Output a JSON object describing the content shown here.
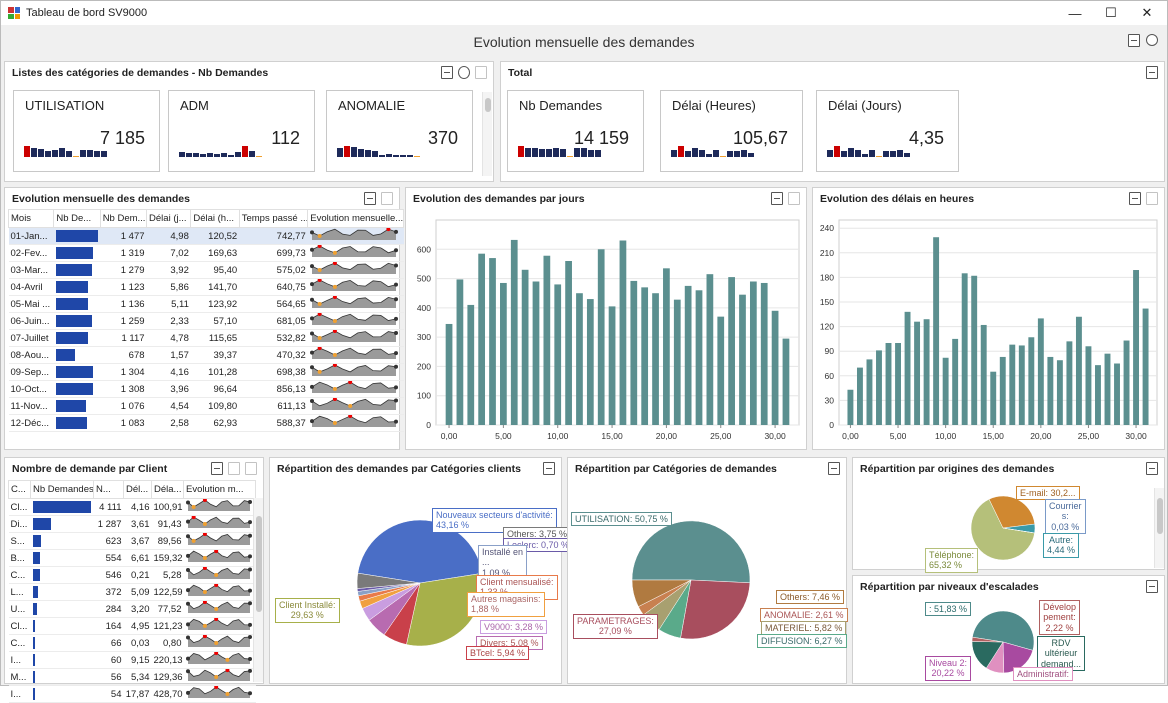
{
  "window": {
    "title": "Tableau de bord SV9000"
  },
  "dashboard": {
    "title": "Evolution mensuelle des demandes"
  },
  "categories_panel": {
    "title": "Listes des catégories de demandes - Nb Demandes",
    "cards": [
      {
        "label": "UTILISATION",
        "value": "7 185"
      },
      {
        "label": "ADM",
        "value": "112"
      },
      {
        "label": "ANOMALIE",
        "value": "370"
      }
    ]
  },
  "total_panel": {
    "title": "Total",
    "cards": [
      {
        "label": "Nb Demandes",
        "value": "14 159"
      },
      {
        "label": "Délai (Heures)",
        "value": "105,67"
      },
      {
        "label": "Délai (Jours)",
        "value": "4,35"
      }
    ]
  },
  "monthly_panel": {
    "title": "Evolution mensuelle des demandes",
    "columns": [
      "Mois",
      "Nb De...",
      "Nb Dem...",
      "Délai (j...",
      "Délai (h...",
      "Temps passé ...",
      "Evolution mensuelle..."
    ],
    "rows": [
      {
        "mois": "01-Jan...",
        "bar": 1477,
        "nb": "1 477",
        "dj": "4,98",
        "dh": "120,52",
        "tp": "742,77"
      },
      {
        "mois": "02-Fev...",
        "bar": 1319,
        "nb": "1 319",
        "dj": "7,02",
        "dh": "169,63",
        "tp": "699,73"
      },
      {
        "mois": "03-Mar...",
        "bar": 1279,
        "nb": "1 279",
        "dj": "3,92",
        "dh": "95,40",
        "tp": "575,02"
      },
      {
        "mois": "04-Avril",
        "bar": 1123,
        "nb": "1 123",
        "dj": "5,86",
        "dh": "141,70",
        "tp": "640,75"
      },
      {
        "mois": "05-Mai ...",
        "bar": 1136,
        "nb": "1 136",
        "dj": "5,11",
        "dh": "123,92",
        "tp": "564,65"
      },
      {
        "mois": "06-Juin...",
        "bar": 1259,
        "nb": "1 259",
        "dj": "2,33",
        "dh": "57,10",
        "tp": "681,05"
      },
      {
        "mois": "07-Juillet",
        "bar": 1117,
        "nb": "1 117",
        "dj": "4,78",
        "dh": "115,65",
        "tp": "532,82"
      },
      {
        "mois": "08-Aou...",
        "bar": 678,
        "nb": "678",
        "dj": "1,57",
        "dh": "39,37",
        "tp": "470,32"
      },
      {
        "mois": "09-Sep...",
        "bar": 1304,
        "nb": "1 304",
        "dj": "4,16",
        "dh": "101,28",
        "tp": "698,38"
      },
      {
        "mois": "10-Oct...",
        "bar": 1308,
        "nb": "1 308",
        "dj": "3,96",
        "dh": "96,64",
        "tp": "856,13"
      },
      {
        "mois": "11-Nov...",
        "bar": 1076,
        "nb": "1 076",
        "dj": "4,54",
        "dh": "109,80",
        "tp": "611,13"
      },
      {
        "mois": "12-Déc...",
        "bar": 1083,
        "nb": "1 083",
        "dj": "2,58",
        "dh": "62,93",
        "tp": "588,37"
      }
    ]
  },
  "clients_panel": {
    "title": "Nombre de demande par Client",
    "columns": [
      "C...",
      "Nb Demandes",
      "N...",
      "Dél...",
      "Déla...",
      "Evolution m..."
    ],
    "rows": [
      {
        "c": "Cl...",
        "bar": 4111,
        "n": "4 111",
        "d1": "4,16",
        "d2": "100,91"
      },
      {
        "c": "Di...",
        "bar": 1287,
        "n": "1 287",
        "d1": "3,61",
        "d2": "91,43"
      },
      {
        "c": "S...",
        "bar": 623,
        "n": "623",
        "d1": "3,67",
        "d2": "89,56"
      },
      {
        "c": "B...",
        "bar": 554,
        "n": "554",
        "d1": "6,61",
        "d2": "159,32"
      },
      {
        "c": "C...",
        "bar": 546,
        "n": "546",
        "d1": "0,21",
        "d2": "5,28"
      },
      {
        "c": "L...",
        "bar": 372,
        "n": "372",
        "d1": "5,09",
        "d2": "122,59"
      },
      {
        "c": "U...",
        "bar": 284,
        "n": "284",
        "d1": "3,20",
        "d2": "77,52"
      },
      {
        "c": "Cl...",
        "bar": 164,
        "n": "164",
        "d1": "4,95",
        "d2": "121,23"
      },
      {
        "c": "C...",
        "bar": 66,
        "n": "66",
        "d1": "0,03",
        "d2": "0,80"
      },
      {
        "c": "I...",
        "bar": 60,
        "n": "60",
        "d1": "9,15",
        "d2": "220,13"
      },
      {
        "c": "M...",
        "bar": 56,
        "n": "56",
        "d1": "5,34",
        "d2": "129,36"
      },
      {
        "c": "I...",
        "bar": 54,
        "n": "54",
        "d1": "17,87",
        "d2": "428,70"
      }
    ]
  },
  "days_panel": {
    "title": "Evolution des demandes par jours"
  },
  "delays_panel": {
    "title": "Evolution des délais en heures"
  },
  "pie_clients_panel": {
    "title": "Répartition des demandes par Catégories clients",
    "labels": {
      "nouveaux": [
        "Nouveaux secteurs d'activité:",
        "43,16 %"
      ],
      "others": "Others: 3,75 %",
      "leclerc": "Leclerc: 0,70 %",
      "installe_en": [
        "Installé en",
        "...",
        "1,09 %"
      ],
      "client_mens": [
        "Client mensualisé:",
        "1,33 %"
      ],
      "autres_mag": [
        "Autres magasins:",
        "1,88 %"
      ],
      "v9000": "V9000: 3,28 %",
      "divers": "Divers: 5,08 %",
      "btcel": "BTcel: 5,94 %",
      "client_inst": [
        "Client Installé:",
        "29,63 %"
      ]
    }
  },
  "pie_cat_panel": {
    "title": "Répartition par Catégories de demandes",
    "labels": {
      "utilisation": "UTILISATION: 50,75 %",
      "parametrages": [
        "PARAMETRAGES:",
        "27,09 %"
      ],
      "others": "Others: 7,46 %",
      "anomalie": "ANOMALIE: 2,61 %",
      "materiel": "MATERIEL: 5,82 %",
      "diffusion": "DIFFUSION: 6,27 %"
    }
  },
  "pie_orig_panel": {
    "title": "Répartition par origines des demandes",
    "labels": {
      "email": "E-mail: 30,2...",
      "courrier": [
        "Courrier",
        "s:",
        "0,03 %"
      ],
      "autre": [
        "Autre:",
        "4,44 %"
      ],
      "telephone": [
        "Téléphone:",
        "65,32 %"
      ]
    }
  },
  "pie_esc_panel": {
    "title": "Répartition par niveaux d'escalades",
    "labels": {
      "n1": ": 51,83 %",
      "dev": [
        "Dévelop",
        "pement:",
        "2,22 %"
      ],
      "rdv": [
        "RDV",
        "ultérieur",
        "demand..."
      ],
      "n2": [
        "Niveau 2:",
        "20,22 %"
      ],
      "admin": "Administratif:"
    }
  },
  "chart_data": [
    {
      "type": "bar",
      "title": "Evolution des demandes par jours",
      "x": [
        0,
        1,
        2,
        3,
        4,
        5,
        6,
        7,
        8,
        9,
        10,
        11,
        12,
        13,
        14,
        15,
        16,
        17,
        18,
        19,
        20,
        21,
        22,
        23,
        24,
        25,
        26,
        27,
        28,
        29,
        30,
        31
      ],
      "values": [
        345,
        497,
        410,
        585,
        570,
        485,
        632,
        530,
        490,
        578,
        480,
        560,
        450,
        430,
        600,
        405,
        630,
        492,
        470,
        450,
        535,
        428,
        475,
        460,
        515,
        370,
        505,
        445,
        490,
        485,
        390,
        295
      ],
      "xticks": [
        "0,00",
        "5,00",
        "10,00",
        "15,00",
        "20,00",
        "25,00",
        "30,00"
      ],
      "yticks": [
        "0",
        "100",
        "200",
        "300",
        "400",
        "500",
        "600"
      ],
      "ylim": [
        0,
        700
      ],
      "color": "#5b8f8f"
    },
    {
      "type": "bar",
      "title": "Evolution des délais en heures",
      "x": [
        0,
        1,
        2,
        3,
        4,
        5,
        6,
        7,
        8,
        9,
        10,
        11,
        12,
        13,
        14,
        15,
        16,
        17,
        18,
        19,
        20,
        21,
        22,
        23,
        24,
        25,
        26,
        27,
        28,
        29,
        30,
        31
      ],
      "values": [
        43,
        70,
        80,
        91,
        100,
        100,
        138,
        126,
        129,
        229,
        82,
        105,
        185,
        182,
        122,
        65,
        83,
        98,
        97,
        107,
        130,
        83,
        79,
        102,
        132,
        96,
        73,
        87,
        75,
        103,
        189,
        142
      ],
      "xticks": [
        "0,00",
        "5,00",
        "10,00",
        "15,00",
        "20,00",
        "25,00",
        "30,00"
      ],
      "yticks": [
        "0",
        "30",
        "60",
        "90",
        "120",
        "150",
        "180",
        "210",
        "240"
      ],
      "ylim": [
        0,
        250
      ],
      "color": "#5b8f8f"
    },
    {
      "type": "pie",
      "title": "Répartition des demandes par Catégories clients",
      "categories": [
        "Nouveaux secteurs d'activité",
        "Client Installé",
        "BTcel",
        "Divers",
        "V9000",
        "Autres magasins",
        "Client mensualisé",
        "Installé en ...",
        "Leclerc",
        "Others"
      ],
      "values": [
        43.16,
        29.63,
        5.94,
        5.08,
        3.28,
        1.88,
        1.33,
        1.09,
        0.7,
        3.75
      ],
      "colors": [
        "#4a6ec6",
        "#a7b04a",
        "#c9404a",
        "#b86bb0",
        "#c99de0",
        "#f0a040",
        "#e87a4a",
        "#8aa0c8",
        "#6a5aa8",
        "#7a7a7a"
      ]
    },
    {
      "type": "pie",
      "title": "Répartition par Catégories de demandes",
      "categories": [
        "UTILISATION",
        "PARAMETRAGES",
        "DIFFUSION",
        "MATERIEL",
        "ANOMALIE",
        "Others"
      ],
      "values": [
        50.75,
        27.09,
        6.27,
        5.82,
        2.61,
        7.46
      ],
      "colors": [
        "#5b8f8f",
        "#a84e5e",
        "#5aaa8a",
        "#a8a070",
        "#c88050",
        "#b07a40"
      ]
    },
    {
      "type": "pie",
      "title": "Répartition par origines des demandes",
      "categories": [
        "Téléphone",
        "E-mail",
        "Autre",
        "Courriers"
      ],
      "values": [
        65.32,
        30.2,
        4.44,
        0.03
      ],
      "colors": [
        "#b5c07a",
        "#d08830",
        "#3a9aa8",
        "#7a9ac8"
      ]
    },
    {
      "type": "pie",
      "title": "Répartition par niveaux d'escalades",
      "categories": [
        "Niveau 1",
        "Niveau 2",
        "Administratif",
        "RDV ultérieur demandé",
        "Développement"
      ],
      "values": [
        51.83,
        20.22,
        9.5,
        16.2,
        2.22
      ],
      "colors": [
        "#4e8a8a",
        "#a84aa0",
        "#e090c0",
        "#2a6a60",
        "#b06060"
      ]
    }
  ]
}
